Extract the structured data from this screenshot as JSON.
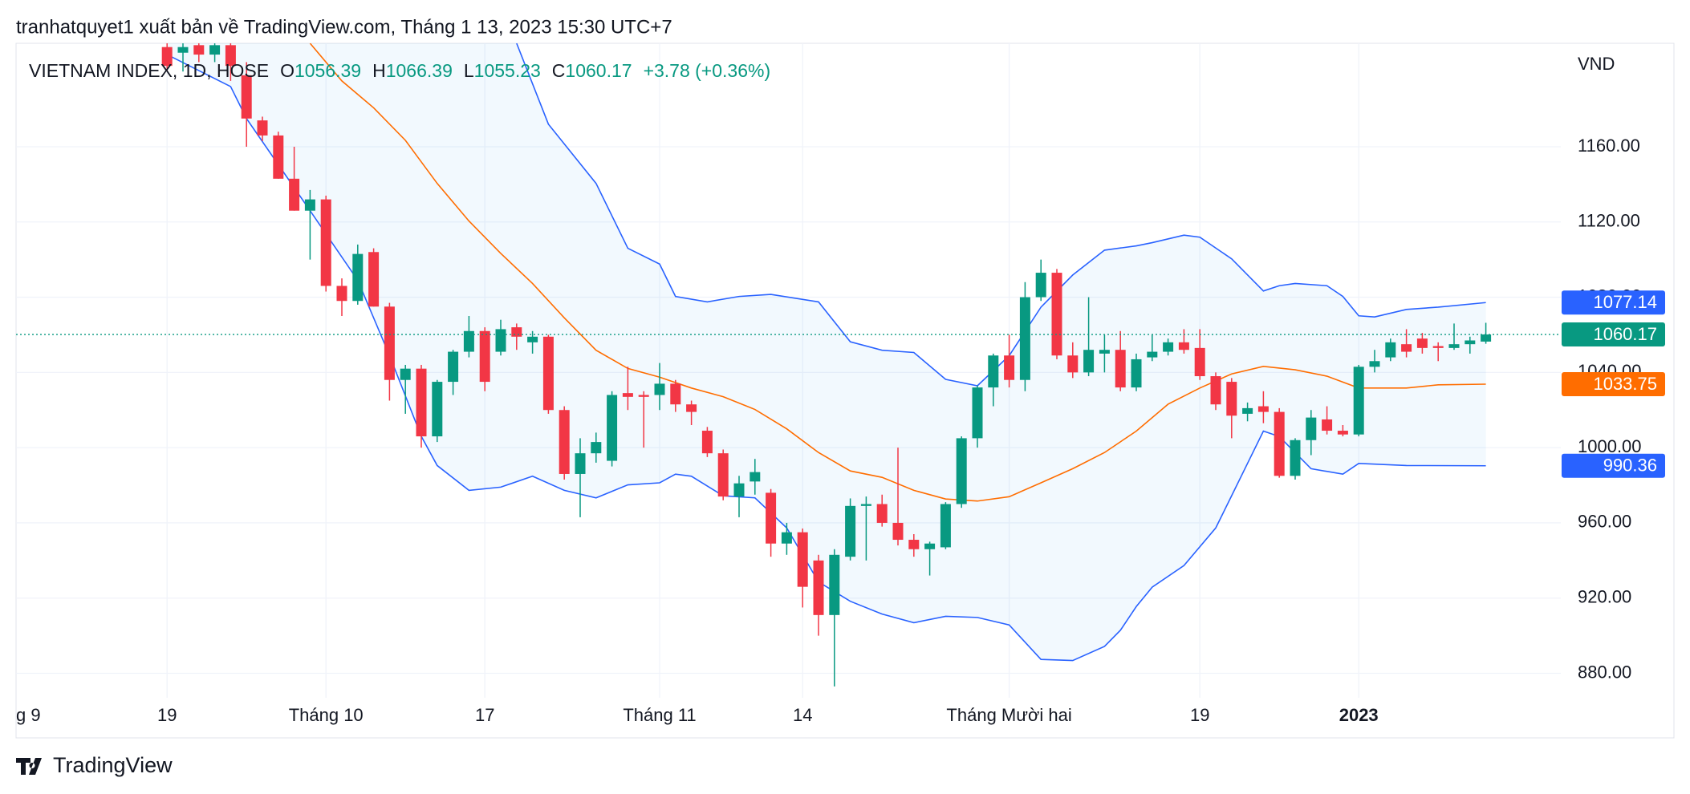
{
  "header": {
    "title": "tranhatquyet1 xuất bản về TradingView.com, Tháng 1 13, 2023 15:30 UTC+7"
  },
  "footer": {
    "brand": "TradingView"
  },
  "chart_data": {
    "type": "candlestick",
    "legend": {
      "symbol": "VIETNAM INDEX, 1D, HOSE",
      "o": "O",
      "h": "H",
      "l": "L",
      "c": "C",
      "change": "+3.78 (+0.36%)"
    },
    "y_axis_label": "VND",
    "categories": [
      "g 9",
      null,
      null,
      null,
      null,
      null,
      null,
      null,
      null,
      "19",
      null,
      null,
      null,
      null,
      null,
      null,
      null,
      null,
      null,
      "Tháng 10",
      null,
      null,
      null,
      null,
      null,
      null,
      null,
      null,
      null,
      "17",
      null,
      null,
      null,
      null,
      null,
      null,
      null,
      null,
      null,
      null,
      "Tháng 11",
      null,
      null,
      null,
      null,
      null,
      null,
      null,
      null,
      "14",
      null,
      null,
      null,
      null,
      null,
      null,
      null,
      null,
      null,
      null,
      null,
      null,
      "Tháng Mười hai",
      null,
      null,
      null,
      null,
      null,
      null,
      null,
      null,
      null,
      null,
      null,
      "19",
      null,
      null,
      null,
      null,
      null,
      null,
      null,
      null,
      null,
      "2023",
      null,
      null,
      null,
      null,
      null,
      null,
      null,
      null
    ],
    "open": [
      null,
      null,
      null,
      null,
      null,
      null,
      null,
      null,
      null,
      1213,
      1210,
      1214,
      1209,
      1214,
      1198,
      1174,
      1166,
      1143,
      1126,
      1132,
      1086,
      1078,
      1104,
      1075,
      1036,
      1042,
      1006,
      1035,
      1051,
      1062,
      1051,
      1064,
      1056,
      1059,
      1020,
      986,
      997,
      993,
      1029,
      1028,
      1028,
      1034,
      1023,
      1009,
      997,
      974,
      982,
      976,
      949,
      955,
      940,
      911,
      942,
      969,
      970,
      960,
      951,
      946,
      947,
      970,
      1005,
      1032,
      1049,
      1036,
      1080,
      1093,
      1049,
      1040,
      1050,
      1052,
      1032,
      1048,
      1051,
      1056,
      1053,
      1038,
      1035,
      1018,
      1022,
      1019,
      985,
      1004,
      1015,
      1009,
      1007,
      1043,
      1048,
      1055,
      1058,
      1054,
      1053,
      1055,
      1056.39
    ],
    "high": [
      null,
      null,
      null,
      null,
      null,
      null,
      null,
      null,
      null,
      1215,
      1215,
      1215,
      1215,
      1215,
      1205,
      1176,
      1168,
      1160,
      1137,
      1134,
      1090,
      1108,
      1106,
      1077,
      1044,
      1044,
      1036,
      1052,
      1070,
      1064,
      1068,
      1066,
      1062,
      1060,
      1022,
      1005,
      1008,
      1030,
      1043,
      1030,
      1045,
      1036,
      1025,
      1011,
      999,
      985,
      994,
      978,
      960,
      957,
      943,
      946,
      973,
      974,
      975,
      1000,
      954,
      950,
      971,
      1006,
      1033,
      1050,
      1060,
      1088,
      1100,
      1095,
      1056,
      1080,
      1060,
      1062,
      1050,
      1060,
      1058,
      1063,
      1063,
      1040,
      1037,
      1024,
      1030,
      1021,
      1005,
      1020,
      1022,
      1012,
      1044,
      1052,
      1058,
      1063,
      1061,
      1056,
      1066,
      1059,
      1066.39
    ],
    "low": [
      null,
      null,
      null,
      null,
      null,
      null,
      null,
      null,
      null,
      1200,
      1200,
      1205,
      1205,
      1195,
      1160,
      1163,
      1143,
      1126,
      1100,
      1083,
      1070,
      1076,
      1075,
      1025,
      1018,
      1000,
      1003,
      1028,
      1048,
      1030,
      1049,
      1052,
      1050,
      1018,
      983,
      963,
      992,
      990,
      1020,
      1000,
      1020,
      1019,
      1012,
      995,
      972,
      963,
      975,
      942,
      943,
      915,
      900,
      873,
      940,
      940,
      958,
      948,
      942,
      932,
      946,
      968,
      1000,
      1022,
      1032,
      1030,
      1078,
      1047,
      1037,
      1038,
      1040,
      1030,
      1030,
      1046,
      1049,
      1050,
      1036,
      1020,
      1005,
      1014,
      1013,
      984,
      983,
      996,
      1007,
      1006,
      1006,
      1040,
      1046,
      1048,
      1050,
      1046,
      1052,
      1050,
      1055.23
    ],
    "close": [
      null,
      null,
      null,
      null,
      null,
      null,
      null,
      null,
      null,
      1203,
      1213,
      1209,
      1214,
      1203,
      1175,
      1166,
      1143,
      1126,
      1132,
      1086,
      1078,
      1103,
      1075,
      1036,
      1042,
      1006,
      1035,
      1051,
      1062,
      1035,
      1063,
      1059,
      1059,
      1020,
      986,
      997,
      1003,
      1028,
      1027,
      1027,
      1034,
      1023,
      1019,
      997,
      974,
      981,
      987,
      949,
      955,
      926,
      911,
      943,
      969,
      970,
      960,
      951,
      946,
      949,
      970,
      1005,
      1032,
      1049,
      1036,
      1080,
      1093,
      1049,
      1040,
      1052,
      1052,
      1032,
      1047,
      1051,
      1056,
      1052,
      1038,
      1023,
      1017,
      1021,
      1019,
      985,
      1004,
      1016,
      1009,
      1007,
      1043,
      1046,
      1056,
      1051,
      1053,
      1053,
      1055,
      1057,
      1060.17
    ],
    "up_color": "#089981",
    "down_color": "#f23645",
    "bands": [
      {
        "color": "#2962ff",
        "x": [
          31,
          33,
          36,
          38,
          40,
          41,
          43,
          45,
          47,
          50,
          52,
          54,
          56,
          58,
          60,
          62,
          64,
          66,
          68,
          70,
          71,
          73,
          74,
          76,
          78,
          79,
          80,
          82,
          83,
          84,
          85,
          87,
          89,
          92
        ],
        "values": [
          1215,
          1172,
          1140.5,
          1106,
          1097.6,
          1080.4,
          1077.5,
          1080.4,
          1081.5,
          1077.5,
          1056.3,
          1051.8,
          1050.6,
          1036.3,
          1032.9,
          1048.9,
          1074.7,
          1091.8,
          1105,
          1107.3,
          1109,
          1113,
          1111.9,
          1100.4,
          1083.3,
          1086.1,
          1087.3,
          1086.1,
          1080.4,
          1070.1,
          1069.5,
          1073.5,
          1074.7,
          1077.14
        ]
      },
      {
        "color": "#ff6d00",
        "x": [
          18,
          20,
          22,
          24,
          26,
          28,
          30,
          32,
          34,
          36,
          38,
          40,
          42,
          44,
          46,
          48,
          50,
          52,
          54,
          56,
          58,
          60,
          62,
          64,
          66,
          68,
          70,
          72,
          74,
          76,
          78,
          80,
          82,
          84,
          87,
          89,
          92
        ],
        "values": [
          1215,
          1195,
          1180.7,
          1163.4,
          1140.5,
          1120.5,
          1103.3,
          1087.3,
          1069,
          1051.8,
          1042.1,
          1037.5,
          1031.7,
          1027.1,
          1020.3,
          1010,
          997.4,
          987.6,
          984.2,
          977.3,
          972.7,
          971.6,
          973.9,
          981.3,
          988.8,
          997.4,
          1008.8,
          1023.1,
          1031.7,
          1039.2,
          1043.2,
          1041.4,
          1038,
          1031.7,
          1031.7,
          1033.4,
          1033.75
        ]
      },
      {
        "color": "#2962ff",
        "x": [
          9,
          13,
          14,
          18,
          21,
          23,
          25,
          26,
          28,
          30,
          32,
          34,
          36,
          38,
          40,
          41,
          42,
          44,
          46,
          48,
          50,
          52,
          54,
          56,
          58,
          60,
          62,
          64,
          66,
          68,
          69,
          70,
          71,
          73,
          75,
          76,
          77,
          78,
          79,
          81,
          83,
          84,
          87,
          92
        ],
        "values": [
          1209,
          1192,
          1175,
          1126,
          1089,
          1049,
          1006,
          990.5,
          977.3,
          979,
          984.8,
          977.3,
          973.3,
          980.2,
          981.3,
          985.9,
          984.8,
          974.4,
          973.3,
          957.3,
          928.6,
          918.3,
          911.5,
          906.9,
          910.3,
          909.7,
          905.7,
          887.4,
          886.8,
          894.3,
          902.9,
          915.5,
          925.8,
          937.3,
          957.3,
          974.4,
          991.6,
          1008.8,
          1005.9,
          988.8,
          985.9,
          991.6,
          990.5,
          990.36
        ]
      }
    ],
    "band_fill": "rgba(33,150,243,0.06)",
    "ylim": [
      867,
      1215
    ],
    "yticks": [
      {
        "value": 880,
        "label": "880.00"
      },
      {
        "value": 920,
        "label": "920.00"
      },
      {
        "value": 960,
        "label": "960.00"
      },
      {
        "value": 1000,
        "label": "1000.00"
      },
      {
        "value": 1040,
        "label": "1040.00"
      },
      {
        "value": 1080,
        "label": "1080.00"
      },
      {
        "value": 1120,
        "label": "1120.00"
      },
      {
        "value": 1160,
        "label": "1160.00"
      }
    ],
    "grid": true
  }
}
